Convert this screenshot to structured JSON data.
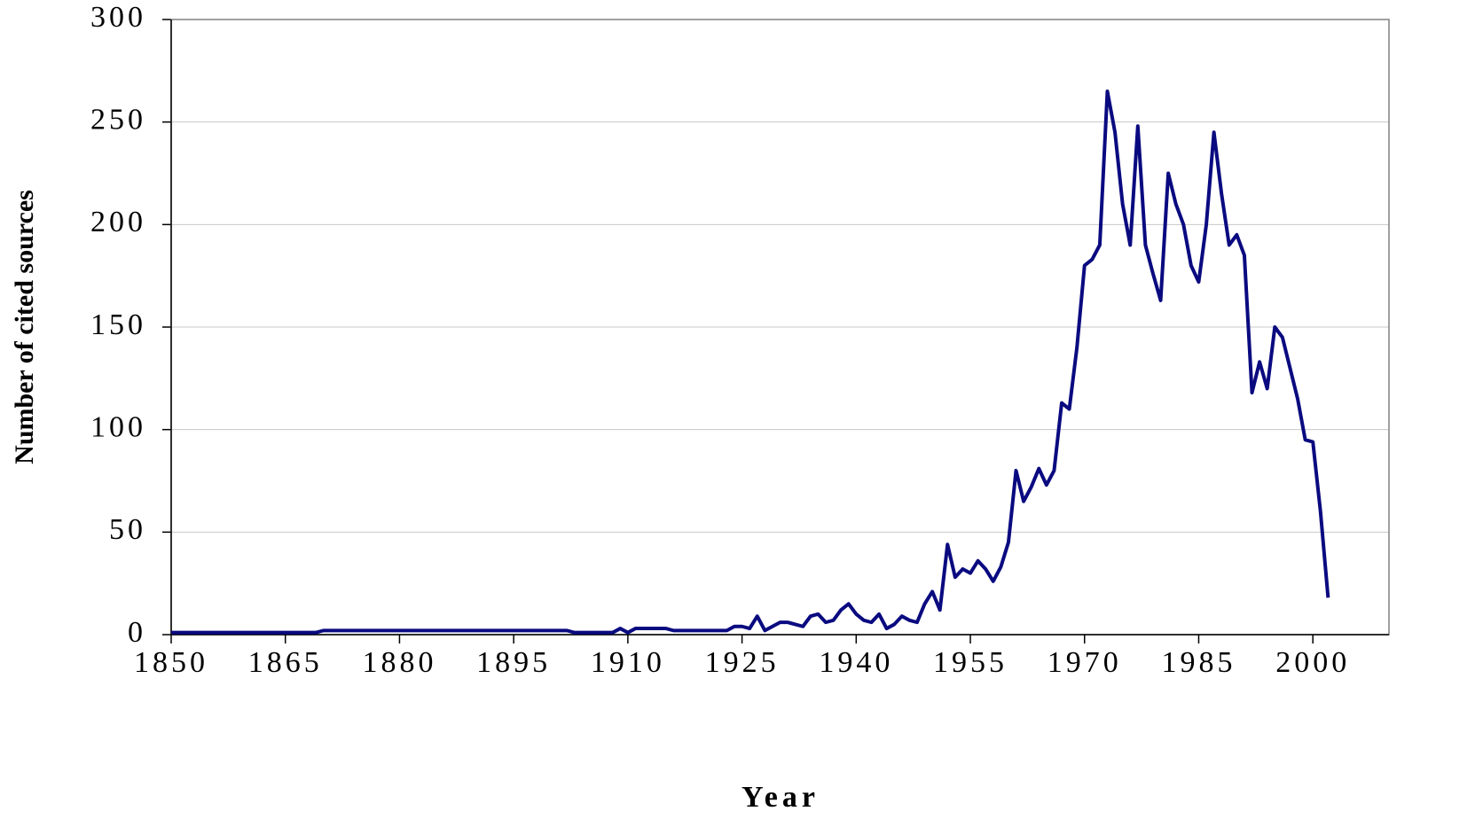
{
  "chart_data": {
    "type": "line",
    "xlabel": "Year",
    "ylabel": "Number of cited sources",
    "x": [
      1850,
      1851,
      1852,
      1853,
      1854,
      1855,
      1856,
      1857,
      1858,
      1859,
      1860,
      1861,
      1862,
      1863,
      1864,
      1865,
      1866,
      1867,
      1868,
      1869,
      1870,
      1871,
      1872,
      1873,
      1874,
      1875,
      1876,
      1877,
      1878,
      1879,
      1880,
      1881,
      1882,
      1883,
      1884,
      1885,
      1886,
      1887,
      1888,
      1889,
      1890,
      1891,
      1892,
      1893,
      1894,
      1895,
      1896,
      1897,
      1898,
      1899,
      1900,
      1901,
      1902,
      1903,
      1904,
      1905,
      1906,
      1907,
      1908,
      1909,
      1910,
      1911,
      1912,
      1913,
      1914,
      1915,
      1916,
      1917,
      1918,
      1919,
      1920,
      1921,
      1922,
      1923,
      1924,
      1925,
      1926,
      1927,
      1928,
      1929,
      1930,
      1931,
      1932,
      1933,
      1934,
      1935,
      1936,
      1937,
      1938,
      1939,
      1940,
      1941,
      1942,
      1943,
      1944,
      1945,
      1946,
      1947,
      1948,
      1949,
      1950,
      1951,
      1952,
      1953,
      1954,
      1955,
      1956,
      1957,
      1958,
      1959,
      1960,
      1961,
      1962,
      1963,
      1964,
      1965,
      1966,
      1967,
      1968,
      1969,
      1970,
      1971,
      1972,
      1973,
      1974,
      1975,
      1976,
      1977,
      1978,
      1979,
      1980,
      1981,
      1982,
      1983,
      1984,
      1985,
      1986,
      1987,
      1988,
      1989,
      1990,
      1991,
      1992,
      1993,
      1994,
      1995,
      1996,
      1997,
      1998,
      1999,
      2000,
      2001,
      2002
    ],
    "series": [
      {
        "name": "Number of cited sources",
        "color": "#0a0a80",
        "values": [
          1,
          1,
          1,
          1,
          1,
          1,
          1,
          1,
          1,
          1,
          1,
          1,
          1,
          1,
          1,
          1,
          1,
          1,
          1,
          1,
          2,
          2,
          2,
          2,
          2,
          2,
          2,
          2,
          2,
          2,
          2,
          2,
          2,
          2,
          2,
          2,
          2,
          2,
          2,
          2,
          2,
          2,
          2,
          2,
          2,
          2,
          2,
          2,
          2,
          2,
          2,
          2,
          2,
          1,
          1,
          1,
          1,
          1,
          1,
          3,
          1,
          3,
          3,
          3,
          3,
          3,
          2,
          2,
          2,
          2,
          2,
          2,
          2,
          2,
          4,
          4,
          3,
          9,
          2,
          4,
          6,
          6,
          5,
          4,
          9,
          10,
          6,
          7,
          12,
          15,
          10,
          7,
          6,
          10,
          3,
          5,
          9,
          7,
          6,
          15,
          21,
          12,
          44,
          28,
          32,
          30,
          36,
          32,
          26,
          33,
          45,
          80,
          65,
          72,
          81,
          73,
          80,
          113,
          110,
          140,
          180,
          183,
          190,
          265,
          245,
          210,
          190,
          248,
          190,
          176,
          163,
          225,
          210,
          200,
          180,
          172,
          200,
          245,
          215,
          190,
          195,
          185,
          118,
          133,
          120,
          150,
          145,
          130,
          115,
          95,
          94,
          60,
          18
        ]
      }
    ],
    "xlim": [
      1850,
      2010
    ],
    "ylim": [
      0,
      300
    ],
    "xticks": [
      1850,
      1865,
      1880,
      1895,
      1910,
      1925,
      1940,
      1955,
      1970,
      1985,
      2000
    ],
    "yticks": [
      0,
      50,
      100,
      150,
      200,
      250,
      300
    ],
    "grid": true
  }
}
